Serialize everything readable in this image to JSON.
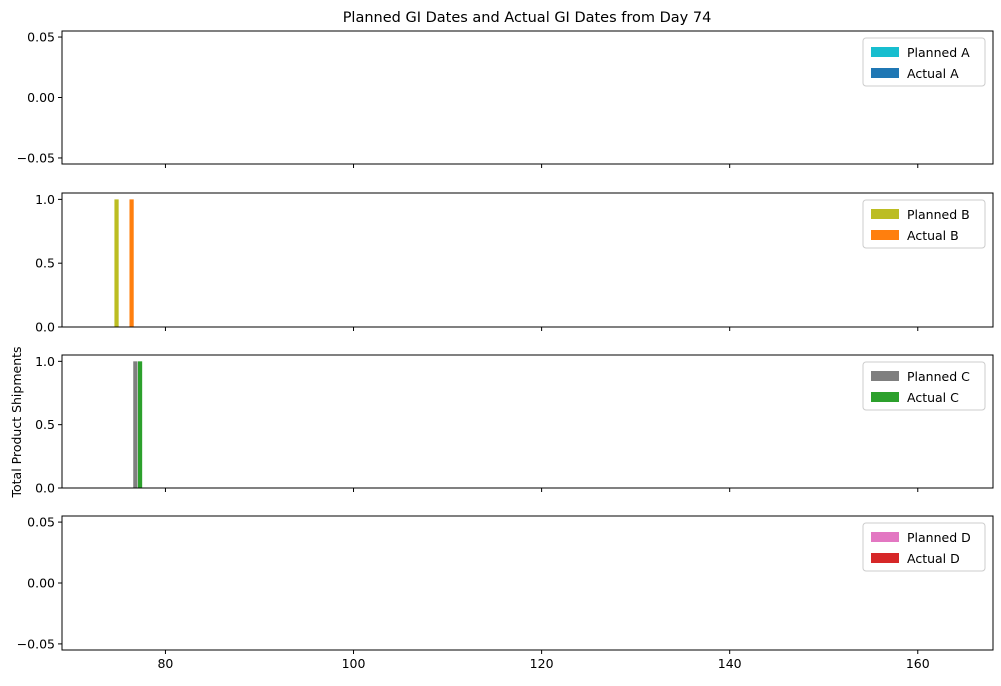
{
  "chart_data": {
    "type": "bar",
    "title": "Planned GI Dates and Actual GI Dates from Day 74",
    "ylabel": "Total Product Shipments",
    "xlabel": "",
    "xlim": [
      69,
      168
    ],
    "x_ticks": [
      80,
      100,
      120,
      140,
      160
    ],
    "x_tick_labels": [
      "80",
      "100",
      "120",
      "140",
      "160"
    ],
    "legend_position": "top-right",
    "grid": false,
    "subplots": [
      {
        "ylim": [
          -0.055,
          0.055
        ],
        "y_ticks": [
          -0.05,
          0.0,
          0.05
        ],
        "y_tick_labels": [
          "−0.05",
          "0.00",
          "0.05"
        ],
        "series": [
          {
            "name": "Planned A",
            "color": "#17becf",
            "bars": []
          },
          {
            "name": "Actual A",
            "color": "#1f77b4",
            "bars": []
          }
        ]
      },
      {
        "ylim": [
          0,
          1.05
        ],
        "y_ticks": [
          0.0,
          0.5,
          1.0
        ],
        "y_tick_labels": [
          "0.0",
          "0.5",
          "1.0"
        ],
        "series": [
          {
            "name": "Planned B",
            "color": "#bcbd22",
            "bars": [
              {
                "x": 74.8,
                "value": 1
              }
            ]
          },
          {
            "name": "Actual B",
            "color": "#ff7f0e",
            "bars": [
              {
                "x": 76.4,
                "value": 1
              }
            ]
          }
        ]
      },
      {
        "ylim": [
          0,
          1.05
        ],
        "y_ticks": [
          0.0,
          0.5,
          1.0
        ],
        "y_tick_labels": [
          "0.0",
          "0.5",
          "1.0"
        ],
        "series": [
          {
            "name": "Planned C",
            "color": "#7f7f7f",
            "bars": [
              {
                "x": 76.8,
                "value": 1
              }
            ]
          },
          {
            "name": "Actual C",
            "color": "#2ca02c",
            "bars": [
              {
                "x": 77.3,
                "value": 1
              }
            ]
          }
        ]
      },
      {
        "ylim": [
          -0.055,
          0.055
        ],
        "y_ticks": [
          -0.05,
          0.0,
          0.05
        ],
        "y_tick_labels": [
          "−0.05",
          "0.00",
          "0.05"
        ],
        "series": [
          {
            "name": "Planned D",
            "color": "#e377c2",
            "bars": []
          },
          {
            "name": "Actual D",
            "color": "#d62728",
            "bars": []
          }
        ]
      }
    ]
  }
}
